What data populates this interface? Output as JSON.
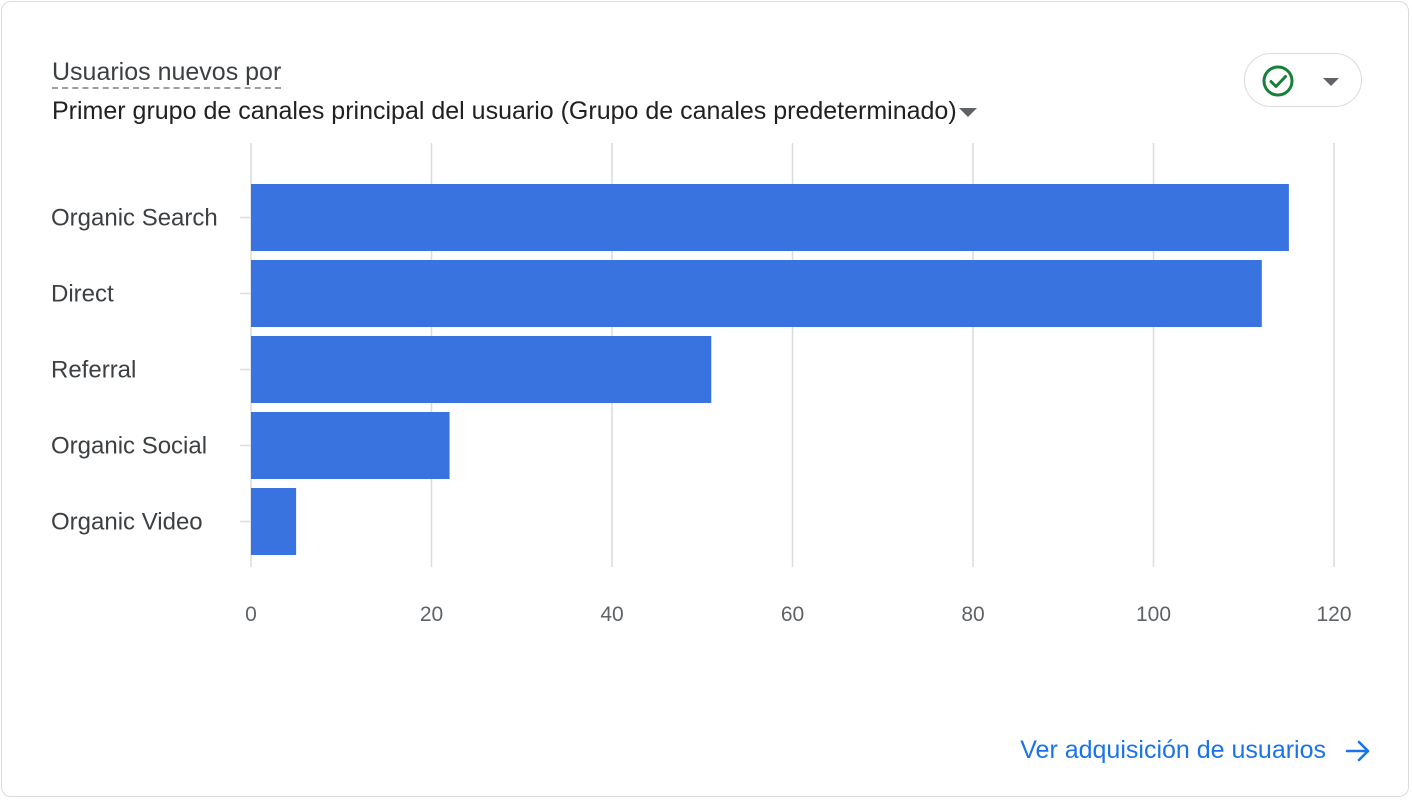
{
  "header": {
    "title_prefix": "Usuarios nuevos por",
    "dimension": "Primer grupo de canales principal del usuario (Grupo de canales predeterminado)"
  },
  "status_button": {
    "icon": "check-circle-icon",
    "caret_icon": "chevron-down-icon",
    "color": "#188038"
  },
  "footer": {
    "link_label": "Ver adquisición de usuarios",
    "icon": "arrow-right-icon"
  },
  "colors": {
    "bar": "#3873e0",
    "link": "#1a73e8",
    "grid": "#dadce0"
  },
  "chart_data": {
    "type": "bar",
    "orientation": "horizontal",
    "categories": [
      "Organic Search",
      "Direct",
      "Referral",
      "Organic Social",
      "Organic Video"
    ],
    "values": [
      115,
      112,
      51,
      22,
      5
    ],
    "xlim": [
      0,
      120
    ],
    "xticks": [
      "0",
      "20",
      "40",
      "60",
      "80",
      "100",
      "120"
    ],
    "grid": true
  }
}
